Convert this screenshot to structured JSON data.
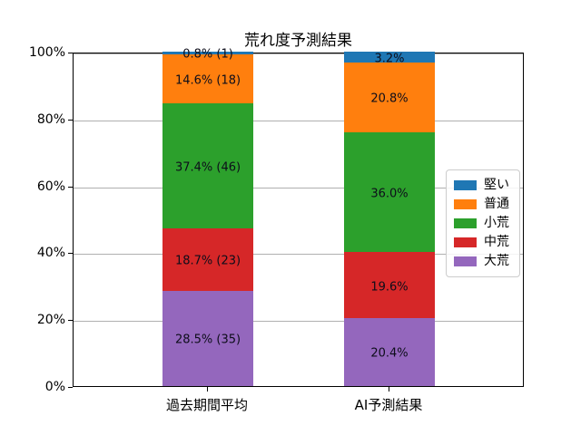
{
  "chart_data": {
    "type": "bar",
    "variant": "stacked-100-percent",
    "title": "荒れ度予測結果",
    "categories": [
      "過去期間平均",
      "AI予測結果"
    ],
    "series": [
      {
        "name": "堅い",
        "color": "#1f77b4",
        "values": [
          0.8,
          3.2
        ],
        "labels": [
          "0.8% (1)",
          "3.2%"
        ]
      },
      {
        "name": "普通",
        "color": "#ff7f0e",
        "values": [
          14.6,
          20.8
        ],
        "labels": [
          "14.6% (18)",
          "20.8%"
        ]
      },
      {
        "name": "小荒",
        "color": "#2ca02c",
        "values": [
          37.4,
          36.0
        ],
        "labels": [
          "37.4% (46)",
          "36.0%"
        ]
      },
      {
        "name": "中荒",
        "color": "#d62728",
        "values": [
          18.7,
          19.6
        ],
        "labels": [
          "18.7% (23)",
          "19.6%"
        ]
      },
      {
        "name": "大荒",
        "color": "#9467bd",
        "values": [
          28.5,
          20.4
        ],
        "labels": [
          "28.5% (35)",
          "20.4%"
        ]
      }
    ],
    "stack_order_note": "series listed top-to-bottom of stack; bottom of bar is last entry (大荒)",
    "yticks": [
      {
        "label": "0%",
        "value": 0
      },
      {
        "label": "20%",
        "value": 20
      },
      {
        "label": "40%",
        "value": 40
      },
      {
        "label": "60%",
        "value": 60
      },
      {
        "label": "80%",
        "value": 80
      },
      {
        "label": "100%",
        "value": 100
      }
    ],
    "ylim": [
      0,
      100
    ],
    "grid": true,
    "grid_color": "#b0b0b0",
    "legend_position": "center-right",
    "legend_entries": [
      "堅い",
      "普通",
      "小荒",
      "中荒",
      "大荒"
    ]
  }
}
